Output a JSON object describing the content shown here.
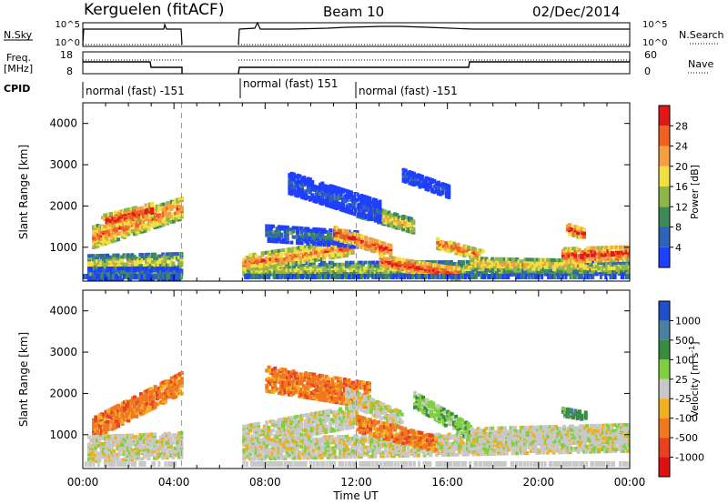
{
  "header": {
    "station": "Kerguelen (fitACF)",
    "beam": "Beam 10",
    "date": "02/Dec/2014"
  },
  "panels": {
    "nsky_label": "N.Sky",
    "nsky_ticks": [
      "10^5",
      "10^0"
    ],
    "nsearch_label": "N.Search",
    "nsearch_ticks": [
      "10^5",
      "10^0"
    ],
    "freq_label_1": "Freq.",
    "freq_label_2": "[MHz]",
    "freq_ticks": [
      "18",
      "8"
    ],
    "nave_label": "Nave",
    "nave_ticks": [
      "60",
      "0"
    ],
    "cpid_label": "CPID",
    "cpid_segments": [
      {
        "label": "normal (fast) -151",
        "start": 0.0,
        "end": 4.33
      },
      {
        "label": "normal (fast) 151",
        "start": 7.0,
        "end": 12.0
      },
      {
        "label": "normal (fast) -151",
        "start": 12.0,
        "end": 24.0
      }
    ]
  },
  "chart_data": [
    {
      "type": "heatmap",
      "name": "power",
      "ylabel": "Slant Range [km]",
      "xlabel": "Time UT",
      "x_ticks": [
        "00:00",
        "04:00",
        "08:00",
        "12:00",
        "16:00",
        "20:00",
        "00:00"
      ],
      "y_ticks": [
        "1000",
        "2000",
        "3000",
        "4000"
      ],
      "xlim": [
        0,
        24
      ],
      "ylim": [
        180,
        4500
      ],
      "colorbar_label": "Power [dB]",
      "colorbar_ticks": [
        "4",
        "8",
        "12",
        "16",
        "20",
        "24",
        "28"
      ],
      "colorbar_colors": [
        "#1f3fff",
        "#2f62b8",
        "#3f8a5a",
        "#8fb64a",
        "#f0e040",
        "#f5a040",
        "#f06020",
        "#e01818"
      ],
      "data_gaps_ut": [
        [
          4.33,
          7.0
        ]
      ]
    },
    {
      "type": "heatmap",
      "name": "velocity",
      "ylabel": "Slant Range [km]",
      "xlabel": "Time UT",
      "x_ticks": [
        "00:00",
        "04:00",
        "08:00",
        "12:00",
        "16:00",
        "20:00",
        "00:00"
      ],
      "y_ticks": [
        "1000",
        "2000",
        "3000",
        "4000"
      ],
      "xlim": [
        0,
        24
      ],
      "ylim": [
        180,
        4500
      ],
      "colorbar_label": "Velocity [m s^-1]",
      "colorbar_ticks": [
        "1000",
        "500",
        "100",
        "25",
        "-25",
        "-100",
        "-500",
        "-1000"
      ],
      "colorbar_colors": [
        "#2050c8",
        "#4a80a0",
        "#3a8a40",
        "#7fcf40",
        "#c8c8c8",
        "#f0b020",
        "#f07820",
        "#e84020",
        "#e01010"
      ],
      "data_gaps_ut": [
        [
          4.33,
          7.0
        ]
      ]
    }
  ],
  "time_label": "Time UT"
}
